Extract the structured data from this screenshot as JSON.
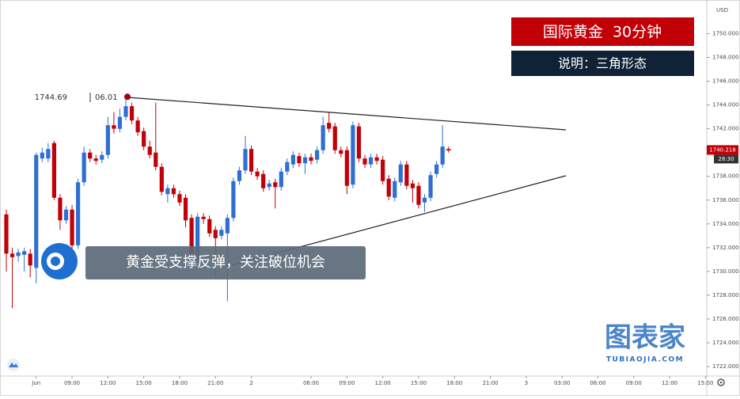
{
  "chart_data": {
    "type": "candlestick",
    "title": "国际黄金  30分钟",
    "subtitle": "说明：三角形态",
    "annotation": "黄金受支撑反弹，关注破位机会",
    "currency": "USD",
    "categories": [
      null,
      null,
      null,
      null,
      null,
      "Jun",
      null,
      null,
      null,
      null,
      null,
      "09:00",
      null,
      null,
      null,
      null,
      null,
      "12:00",
      null,
      null,
      null,
      null,
      null,
      "15:00",
      null,
      null,
      null,
      null,
      null,
      "18:00",
      null,
      null,
      null,
      null,
      null,
      "21:00",
      null,
      null,
      null,
      null,
      null,
      "2",
      null,
      null,
      null,
      null,
      null,
      null,
      null,
      null,
      null,
      "06:00",
      null,
      null,
      null,
      null,
      null,
      "09:00",
      null,
      null,
      null,
      null,
      null,
      "12:00",
      null,
      null,
      null,
      null,
      null,
      "15:00",
      null,
      null,
      null,
      null,
      null,
      "18:00",
      null,
      null,
      null,
      null,
      null,
      "21:00",
      null,
      null,
      null,
      null,
      null,
      "3",
      null,
      null,
      null,
      null,
      null,
      "03:00",
      null,
      null,
      null,
      null,
      null,
      "06:00",
      null,
      null,
      null,
      null,
      null,
      "09:00",
      null,
      null,
      null,
      null,
      null,
      "12:00",
      null,
      null,
      null,
      null,
      null,
      "15:00"
    ],
    "open": [
      1734.8,
      1731.5,
      1731.3,
      1731.4,
      1731.5,
      1730.3,
      1739.5,
      1739.5,
      1740.8,
      1736.2,
      1734.3,
      1735.2,
      1732.2,
      1737.5,
      1740.0,
      1739.5,
      1739.4,
      1739.8,
      1742.3,
      1742.0,
      1743.0,
      1743.9,
      1742.7,
      1741.8,
      1740.5,
      1740.0,
      1738.8,
      1736.5,
      1737.0,
      1736.5,
      1736.2,
      1734.5,
      1731.0,
      1734.6,
      1734.4,
      1733.5,
      1733.0,
      1733.2,
      1734.5,
      1737.6,
      1738.5,
      1740.3,
      1738.4,
      1738.2,
      1737.1,
      1737.5,
      1737.1,
      1738.4,
      1739.0,
      1739.7,
      1739.1,
      1739.6,
      1739.4,
      1740.2,
      1742.5,
      1742.2,
      1740.2,
      1740.2,
      1737.3,
      1742.2,
      1739.5,
      1739.0,
      1739.6,
      1739.4,
      1737.8,
      1736.2,
      1737.5,
      1739.0,
      1737.4,
      1737.2,
      1735.8,
      1736.2,
      1738.2,
      1739.0,
      1740.3,
      null,
      null,
      null,
      null,
      null,
      null,
      null,
      null,
      null,
      null,
      null,
      null,
      null,
      null,
      null,
      null,
      null,
      null,
      null,
      null,
      null,
      null,
      null,
      null,
      null,
      null,
      null,
      null,
      null,
      null,
      null,
      null,
      null,
      null,
      null,
      null,
      null,
      null,
      null,
      null,
      null,
      null,
      null
    ],
    "high": [
      1735.2,
      1732.0,
      1731.9,
      1732.0,
      1731.9,
      1740.0,
      1740.4,
      1740.8,
      1741.0,
      1736.5,
      1735.5,
      1735.6,
      1737.8,
      1740.5,
      1740.3,
      1739.8,
      1740.1,
      1743.0,
      1743.4,
      1743.7,
      1744.69,
      1744.2,
      1743.0,
      1742.1,
      1741.0,
      1744.2,
      1739.1,
      1737.3,
      1737.3,
      1736.8,
      1736.5,
      1734.8,
      1734.9,
      1734.9,
      1734.7,
      1733.8,
      1733.8,
      1734.8,
      1737.9,
      1738.8,
      1741.4,
      1740.6,
      1738.7,
      1738.5,
      1737.7,
      1737.8,
      1738.7,
      1739.5,
      1740.1,
      1740.0,
      1739.9,
      1739.9,
      1740.5,
      1743.0,
      1743.4,
      1742.5,
      1740.5,
      1740.5,
      1742.6,
      1742.5,
      1739.8,
      1739.9,
      1739.9,
      1739.7,
      1738.1,
      1737.9,
      1739.3,
      1739.3,
      1737.7,
      1737.5,
      1736.5,
      1738.4,
      1739.3,
      1742.3,
      1740.5,
      null,
      null,
      null,
      null,
      null,
      null,
      null,
      null,
      null,
      null,
      null,
      null,
      null,
      null,
      null,
      null,
      null,
      null,
      null,
      null,
      null,
      null,
      null,
      null,
      null,
      null,
      null,
      null,
      null,
      null,
      null,
      null,
      null,
      null,
      null,
      null,
      null,
      null,
      null,
      null,
      null,
      null,
      null
    ],
    "low": [
      1730.0,
      1726.9,
      1730.8,
      1730.0,
      1729.5,
      1729.0,
      1739.2,
      1739.2,
      1736.0,
      1733.5,
      1734.0,
      1731.5,
      1731.9,
      1737.2,
      1739.2,
      1739.0,
      1739.1,
      1739.5,
      1741.6,
      1741.7,
      1742.7,
      1742.4,
      1741.4,
      1740.2,
      1739.5,
      1738.5,
      1736.4,
      1735.8,
      1736.2,
      1735.5,
      1733.7,
      1730.5,
      1730.7,
      1734.0,
      1732.9,
      1729.5,
      1732.7,
      1727.5,
      1734.2,
      1737.3,
      1738.2,
      1738.1,
      1737.7,
      1736.7,
      1736.8,
      1735.3,
      1736.8,
      1738.1,
      1738.7,
      1738.8,
      1738.2,
      1739.0,
      1739.1,
      1739.9,
      1741.7,
      1739.9,
      1739.6,
      1736.5,
      1737.0,
      1739.2,
      1738.7,
      1738.7,
      1739.0,
      1737.3,
      1736.0,
      1735.9,
      1737.2,
      1736.9,
      1735.8,
      1735.3,
      1735.0,
      1735.9,
      1737.9,
      1738.7,
      1740.0,
      null,
      null,
      null,
      null,
      null,
      null,
      null,
      null,
      null,
      null,
      null,
      null,
      null,
      null,
      null,
      null,
      null,
      null,
      null,
      null,
      null,
      null,
      null,
      null,
      null,
      null,
      null,
      null,
      null,
      null,
      null,
      null,
      null,
      null,
      null,
      null,
      null,
      null,
      null,
      null,
      null,
      null,
      null
    ],
    "close": [
      1731.5,
      1731.2,
      1731.6,
      1731.7,
      1730.5,
      1739.8,
      1740.0,
      1740.3,
      1736.2,
      1734.3,
      1735.2,
      1732.2,
      1737.5,
      1740.0,
      1739.5,
      1739.3,
      1739.8,
      1742.3,
      1742.0,
      1743.0,
      1743.9,
      1742.7,
      1741.7,
      1740.5,
      1739.8,
      1738.8,
      1736.7,
      1737.0,
      1736.5,
      1735.8,
      1734.3,
      1731.0,
      1734.6,
      1734.4,
      1733.2,
      1732.8,
      1733.5,
      1734.5,
      1737.6,
      1738.5,
      1740.3,
      1738.4,
      1738.0,
      1737.0,
      1737.4,
      1737.1,
      1738.4,
      1739.2,
      1739.8,
      1739.1,
      1739.6,
      1739.3,
      1740.2,
      1742.3,
      1742.0,
      1740.2,
      1739.9,
      1737.2,
      1742.3,
      1739.5,
      1739.0,
      1739.6,
      1739.3,
      1737.6,
      1736.3,
      1737.6,
      1739.0,
      1737.2,
      1737.0,
      1735.6,
      1736.2,
      1738.1,
      1739.0,
      1740.5,
      1740.2,
      null,
      null,
      null,
      null,
      null,
      null,
      null,
      null,
      null,
      null,
      null,
      null,
      null,
      null,
      null,
      null,
      null,
      null,
      null,
      null,
      null,
      null,
      null,
      null,
      null,
      null,
      null,
      null,
      null,
      null,
      null,
      null,
      null,
      null,
      null,
      null,
      null,
      null,
      null,
      null,
      null,
      null,
      null
    ],
    "up_color": "#2f6fd1",
    "down_color": "#c10008",
    "ylim": [
      1721.2,
      1752.5
    ],
    "yticks": [
      {
        "value": 1722,
        "label": "1722.000"
      },
      {
        "value": 1724,
        "label": "1724.000"
      },
      {
        "value": 1726,
        "label": "1726.000"
      },
      {
        "value": 1728,
        "label": "1728.000"
      },
      {
        "value": 1730,
        "label": "1730.000"
      },
      {
        "value": 1732,
        "label": "1732.000"
      },
      {
        "value": 1734,
        "label": "1734.000"
      },
      {
        "value": 1736,
        "label": "1736.000"
      },
      {
        "value": 1738,
        "label": "1738.000"
      },
      {
        "value": 1740,
        "label": "1740.000"
      },
      {
        "value": 1742,
        "label": "1742.000"
      },
      {
        "value": 1744,
        "label": "1744.000"
      },
      {
        "value": 1746,
        "label": "1746.000"
      },
      {
        "value": 1748,
        "label": "1748.000"
      },
      {
        "value": 1750,
        "label": "1750.000"
      }
    ],
    "grid": false,
    "last_price": 1740.218,
    "countdown": "28:30",
    "high_marker": {
      "label": "1744.69",
      "time": "06.01"
    }
  },
  "watermark": {
    "title": "图表家",
    "subtitle": "TUBIAOJIA.COM"
  }
}
